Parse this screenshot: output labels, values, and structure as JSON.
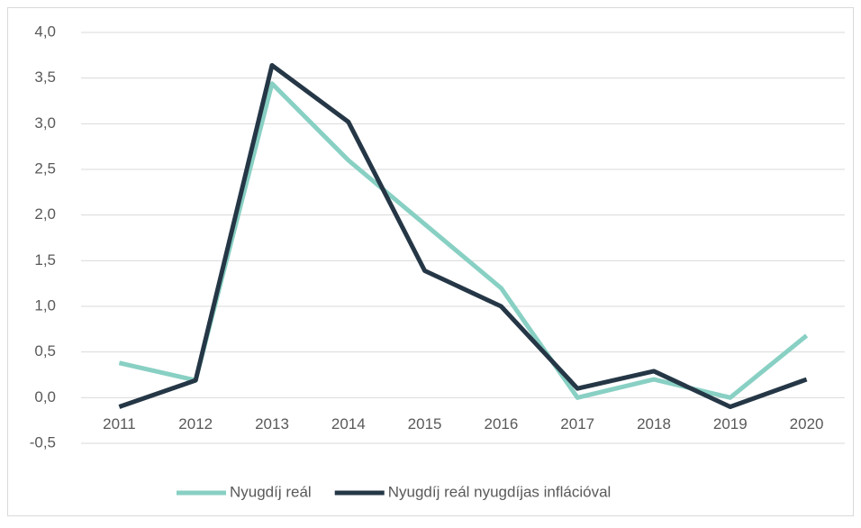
{
  "chart_data": {
    "type": "line",
    "categories": [
      "2011",
      "2012",
      "2013",
      "2014",
      "2015",
      "2016",
      "2017",
      "2018",
      "2019",
      "2020"
    ],
    "series": [
      {
        "name": "Nyugdíj reál",
        "color": "#88d0c3",
        "values": [
          0.38,
          0.19,
          3.44,
          2.6,
          1.9,
          1.2,
          0.0,
          0.2,
          0.0,
          0.68
        ]
      },
      {
        "name": "Nyugdíj reál nyugdíjas inflációval",
        "color": "#253746",
        "values": [
          -0.1,
          0.19,
          3.64,
          3.02,
          1.39,
          1.0,
          0.1,
          0.29,
          -0.1,
          0.2
        ]
      }
    ],
    "ylim": [
      -0.5,
      4.0
    ],
    "yticks": [
      {
        "value": -0.5,
        "label": "-0,5"
      },
      {
        "value": 0,
        "label": "0,0"
      },
      {
        "value": 0.5,
        "label": "0,5"
      },
      {
        "value": 1.0,
        "label": "1,0"
      },
      {
        "value": 1.5,
        "label": "1,5"
      },
      {
        "value": 2.0,
        "label": "2,0"
      },
      {
        "value": 2.5,
        "label": "2,5"
      },
      {
        "value": 3.0,
        "label": "3,0"
      },
      {
        "value": 3.5,
        "label": "3,5"
      },
      {
        "value": 4.0,
        "label": "4,0"
      }
    ],
    "grid": true,
    "legend": "bottom"
  }
}
